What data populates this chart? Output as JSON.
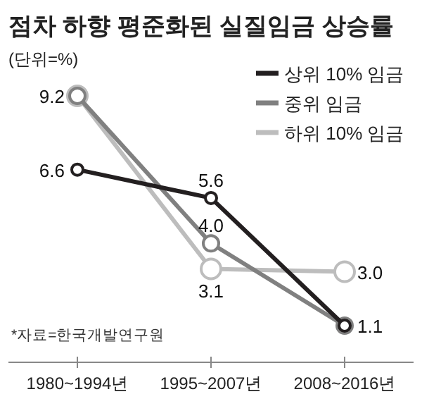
{
  "chart_data": {
    "type": "line",
    "title": "점차 하향 평준화된 실질임금 상승률",
    "subtitle": "(단위=%)",
    "annotations": [
      "*자료=한국개발연구원"
    ],
    "categories": [
      "1980~1994년",
      "1995~2007년",
      "2008~2016년"
    ],
    "series": [
      {
        "name": "상위 10% 임금",
        "color": "#231f20",
        "values": [
          6.6,
          5.6,
          1.1
        ],
        "value_labels": [
          "6.6",
          "5.6",
          "1.1"
        ]
      },
      {
        "name": "중위 임금",
        "color": "#808080",
        "values": [
          9.2,
          4.0,
          1.1
        ],
        "value_labels": [
          "9.2",
          "4.0",
          null
        ]
      },
      {
        "name": "하위 10% 임금",
        "color": "#bdbdbd",
        "values": [
          9.2,
          3.1,
          3.0
        ],
        "value_labels": [
          null,
          "3.1",
          "3.0"
        ]
      }
    ],
    "marker": "circle",
    "legend": "top right",
    "grid": false
  }
}
